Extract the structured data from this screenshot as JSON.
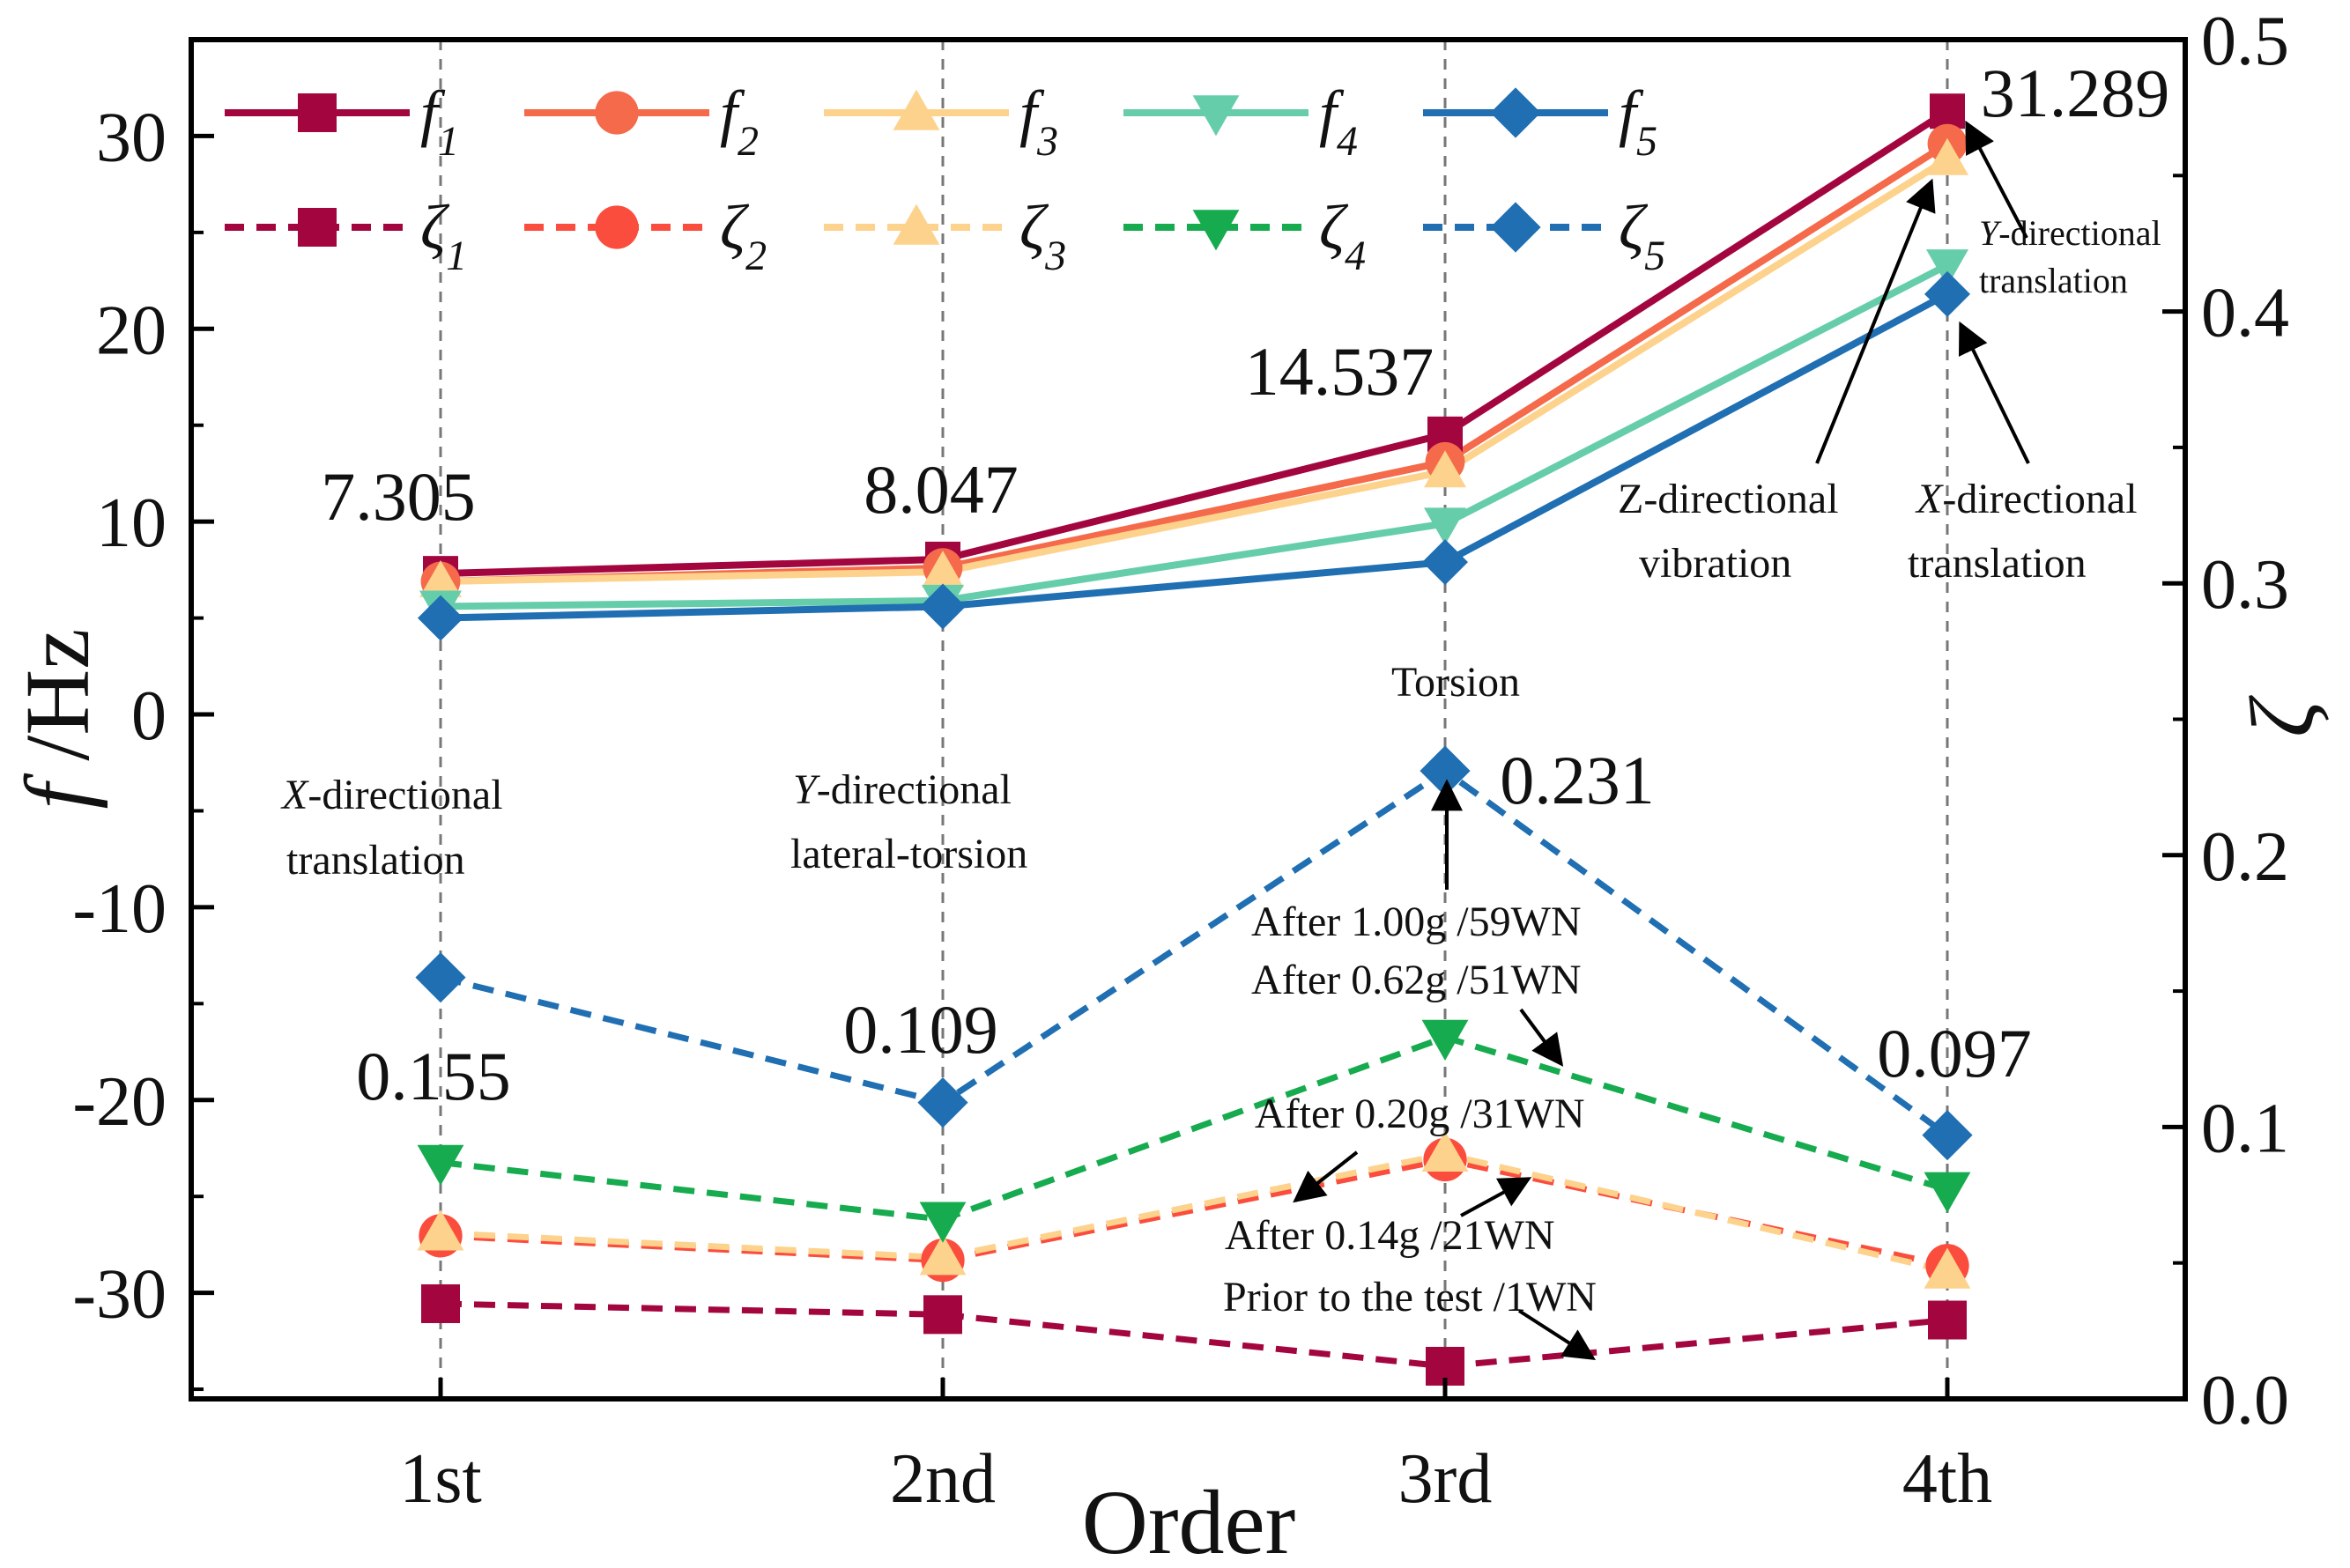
{
  "chart_data": {
    "type": "line",
    "title": "",
    "xlabel": "Order",
    "ylabel_left": "f /Hz",
    "ylabel_right": "ζ",
    "categories": [
      "1st",
      "2nd",
      "3rd",
      "4th"
    ],
    "ylim_left": [
      -35.5,
      35
    ],
    "yticks_left": [
      30,
      20,
      10,
      0,
      -10,
      -20,
      -30
    ],
    "ylim_right": [
      0.0,
      0.5
    ],
    "yticks_right": [
      0.5,
      0.4,
      0.3,
      0.2,
      0.1,
      0.0
    ],
    "ytick_labels_right": [
      "0.5",
      "0.4",
      "0.3",
      "0.2",
      "0.1",
      "0.0"
    ],
    "grid": "vertical dashed at categories",
    "legend_position": "top-left",
    "frequency_series": [
      {
        "name": "f",
        "sub": "1",
        "color": "#a3063f",
        "marker": "square",
        "values": [
          7.305,
          8.047,
          14.537,
          31.289
        ]
      },
      {
        "name": "f",
        "sub": "2",
        "color": "#f46a4a",
        "marker": "circle",
        "values": [
          6.9,
          7.6,
          13.1,
          29.6
        ]
      },
      {
        "name": "f",
        "sub": "3",
        "color": "#fdd28c",
        "marker": "triangle-up",
        "values": [
          6.9,
          7.4,
          12.6,
          28.8
        ]
      },
      {
        "name": "f",
        "sub": "4",
        "color": "#66cdaa",
        "marker": "triangle-down",
        "values": [
          5.6,
          5.9,
          9.9,
          23.3
        ]
      },
      {
        "name": "f",
        "sub": "5",
        "color": "#1f6fb2",
        "marker": "diamond",
        "values": [
          5.0,
          5.6,
          7.9,
          21.8
        ]
      }
    ],
    "damping_series": [
      {
        "name": "ζ",
        "sub": "1",
        "color": "#a3063f",
        "marker": "square",
        "values": [
          0.035,
          0.031,
          0.012,
          0.029
        ]
      },
      {
        "name": "ζ",
        "sub": "2",
        "color": "#fb4d3d",
        "marker": "circle",
        "values": [
          0.06,
          0.051,
          0.088,
          0.049
        ]
      },
      {
        "name": "ζ",
        "sub": "3",
        "color": "#fdd28c",
        "marker": "triangle-up",
        "values": [
          0.061,
          0.052,
          0.09,
          0.047
        ]
      },
      {
        "name": "ζ",
        "sub": "4",
        "color": "#16ab4e",
        "marker": "triangle-down",
        "values": [
          0.087,
          0.066,
          0.133,
          0.077
        ]
      },
      {
        "name": "ζ",
        "sub": "5",
        "color": "#1f6fb2",
        "marker": "diamond",
        "values": [
          0.155,
          0.109,
          0.231,
          0.097
        ]
      }
    ],
    "value_labels": [
      "7.305",
      "8.047",
      "14.537",
      "31.289",
      "0.155",
      "0.109",
      "0.231",
      "0.097"
    ],
    "mode_labels": {
      "first_line1": "X",
      "first_line1_rest": "-directional",
      "first_line2": "translation",
      "second_line1": "Y",
      "second_line1_rest": "-directional",
      "second_line2": "lateral-torsion",
      "third": "Torsion",
      "fourth_z_line1": "Z-directional",
      "fourth_z_line2": "vibration",
      "fourth_x_line1": "X",
      "fourth_x_line1_rest": "-directional",
      "fourth_x_line2": "translation",
      "fourth_y_line1": "Y",
      "fourth_y_line1_rest": "-directional",
      "fourth_y_line2": "translation"
    },
    "annotations": [
      "After 1.00g /59WN",
      "After 0.62g /51WN",
      "After 0.20g /31WN",
      "After 0.14g /21WN",
      "Prior to the test /1WN"
    ]
  }
}
